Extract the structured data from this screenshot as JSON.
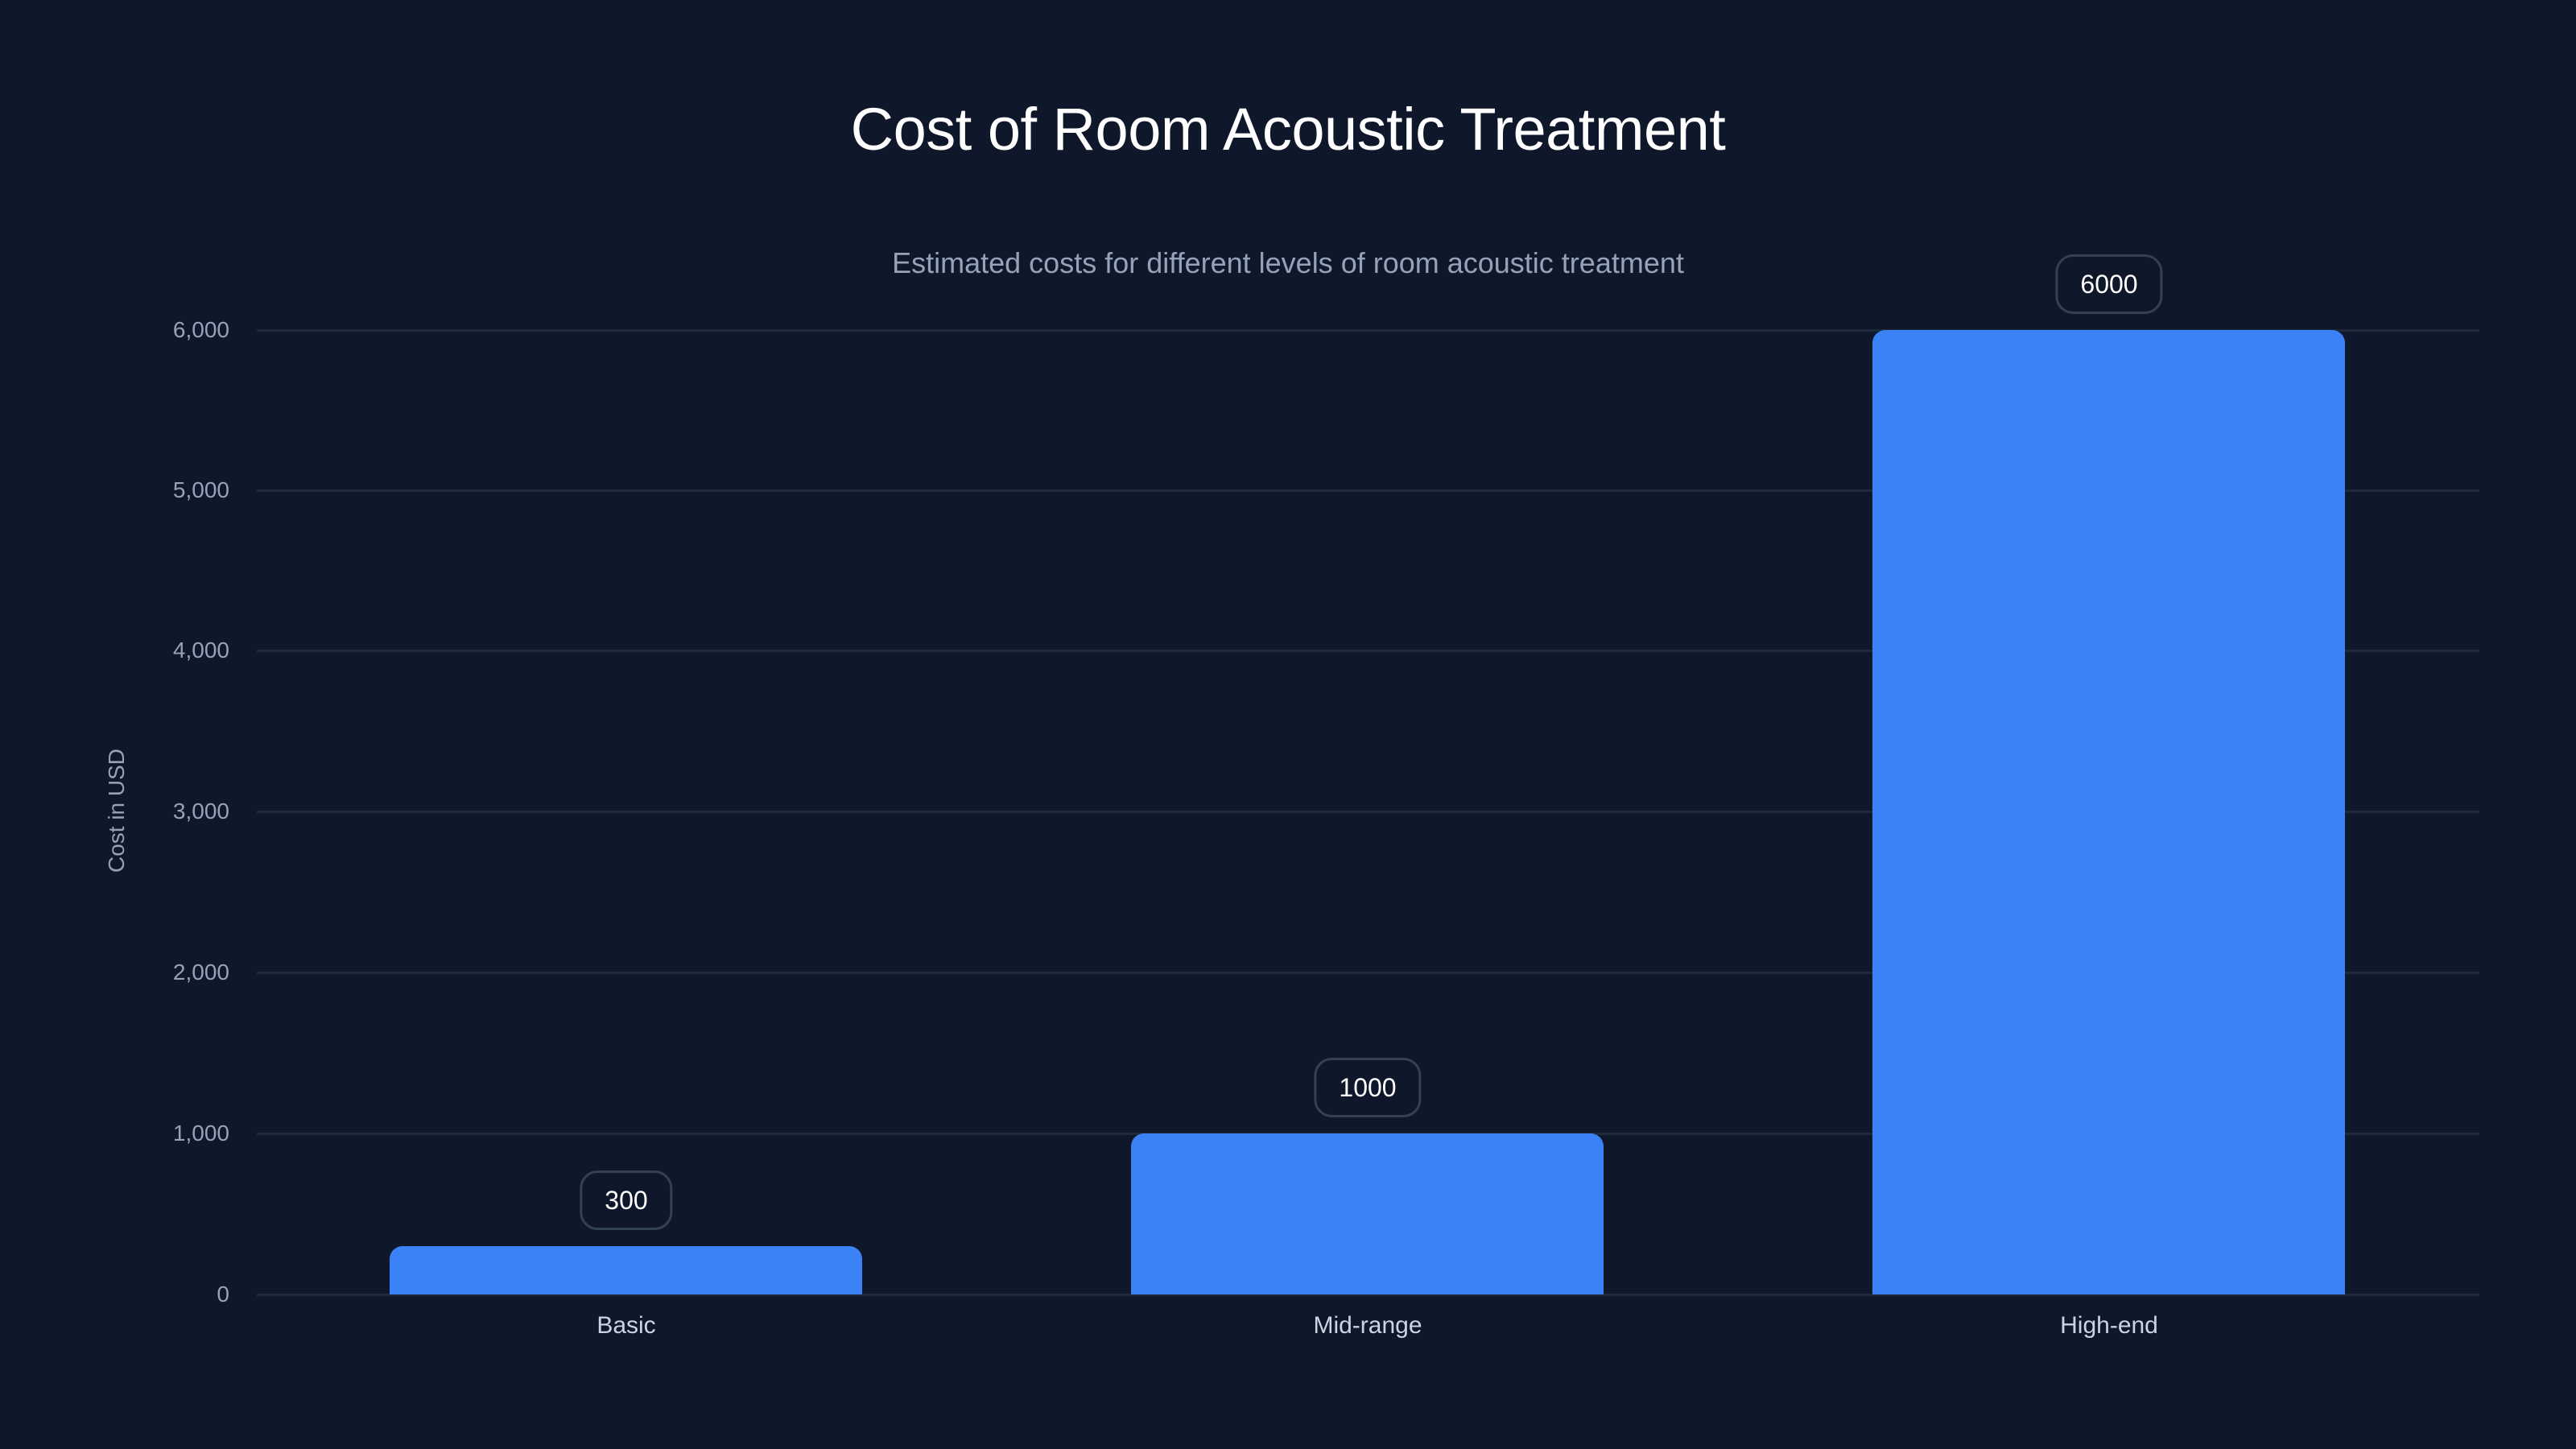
{
  "chart_data": {
    "type": "bar",
    "title": "Cost of Room Acoustic Treatment",
    "subtitle": "Estimated costs for different levels of room acoustic treatment",
    "xlabel": "",
    "ylabel": "Cost in USD",
    "categories": [
      "Basic",
      "Mid-range",
      "High-end"
    ],
    "values": [
      300,
      1000,
      6000
    ],
    "value_labels": [
      "300",
      "1000",
      "6000"
    ],
    "ylim": [
      0,
      6000
    ],
    "yticks": [
      0,
      1000,
      2000,
      3000,
      4000,
      5000,
      6000
    ],
    "ytick_labels": [
      "0",
      "1,000",
      "2,000",
      "3,000",
      "4,000",
      "5,000",
      "6,000"
    ],
    "grid": true,
    "legend": null,
    "colors": {
      "bar": "#3b82f6",
      "background": "#0f172a",
      "grid": "#1e293b"
    }
  }
}
